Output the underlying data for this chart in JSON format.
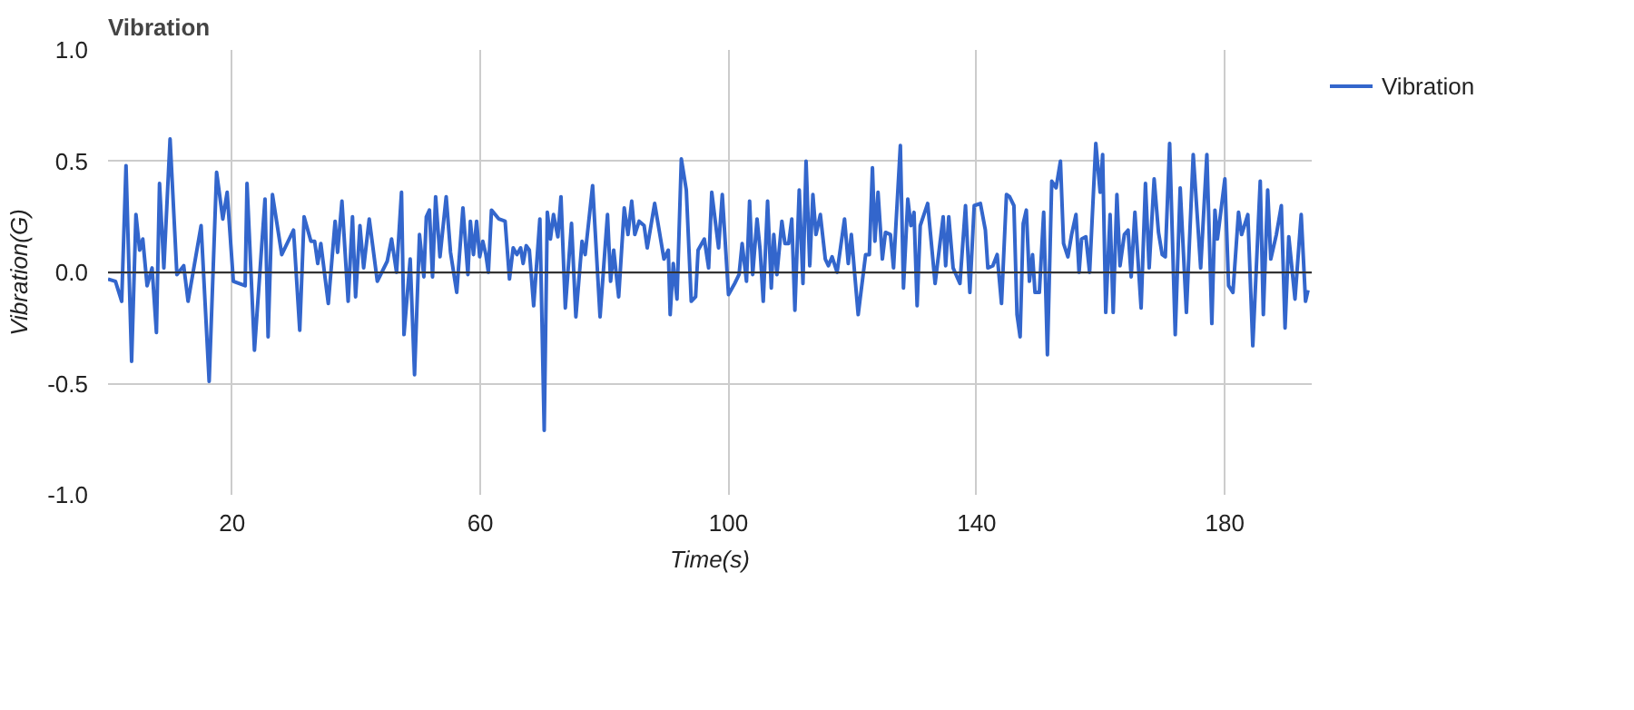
{
  "chart_data": {
    "type": "line",
    "title": "Vibration",
    "xlabel": "Time(s)",
    "ylabel": "Vibration(G)",
    "xlim": [
      0,
      194
    ],
    "xticks": [
      20,
      60,
      100,
      140,
      180
    ],
    "ylim": [
      -1.0,
      1.0
    ],
    "yticks": [
      {
        "value": -1.0,
        "label": "-1.0"
      },
      {
        "value": -0.5,
        "label": "-0.5"
      },
      {
        "value": 0,
        "label": "0.0"
      },
      {
        "value": 0.5,
        "label": "0.5"
      },
      {
        "value": 1.0,
        "label": "1.0"
      }
    ],
    "grid": true,
    "legend": "top right",
    "line_style": "solid",
    "ref_lines": [
      {
        "axis": "y",
        "value": 0,
        "color": "#333333"
      }
    ],
    "x": [
      0,
      1.2,
      2.2,
      2.9,
      3.8,
      4.5,
      5.1,
      5.6,
      6.3,
      7.1,
      7.8,
      8.3,
      9.0,
      10.0,
      11.1,
      12.2,
      12.9,
      15.0,
      16.3,
      17.5,
      18.5,
      19.2,
      20.2,
      22.1,
      22.4,
      23.6,
      25.3,
      25.8,
      26.5,
      28.0,
      29.9,
      30.9,
      31.6,
      32.7,
      33.3,
      33.8,
      34.3,
      35.5,
      36.6,
      37.0,
      37.7,
      38.7,
      39.4,
      39.9,
      40.6,
      41.2,
      42.1,
      43.4,
      45.0,
      45.7,
      46.5,
      47.3,
      47.7,
      48.7,
      49.4,
      50.2,
      50.9,
      51.3,
      51.8,
      52.3,
      52.8,
      53.5,
      54.5,
      55.2,
      56.2,
      57.2,
      58.0,
      58.4,
      58.9,
      59.4,
      59.9,
      60.4,
      60.9,
      61.3,
      61.8,
      63.0,
      64.0,
      64.7,
      65.3,
      65.9,
      66.5,
      66.9,
      67.4,
      67.9,
      68.6,
      69.6,
      70.3,
      70.8,
      71.3,
      71.8,
      72.5,
      73.0,
      73.7,
      74.7,
      75.4,
      76.4,
      76.9,
      78.1,
      79.3,
      80.5,
      81.0,
      81.5,
      82.3,
      83.2,
      83.8,
      84.4,
      84.9,
      85.6,
      86.4,
      86.9,
      88.1,
      89.6,
      90.3,
      90.6,
      91.1,
      91.7,
      92.4,
      93.2,
      94.0,
      94.7,
      95.1,
      96.1,
      96.8,
      97.3,
      98.4,
      99.0,
      100.0,
      101.0,
      101.7,
      102.2,
      102.9,
      103.4,
      103.9,
      104.6,
      105.1,
      105.6,
      106.3,
      106.9,
      107.3,
      107.8,
      108.6,
      109.1,
      109.7,
      110.2,
      110.7,
      111.4,
      112.0,
      112.5,
      113.1,
      113.6,
      114.1,
      114.8,
      115.6,
      116.1,
      116.7,
      117.5,
      118.7,
      119.3,
      119.8,
      120.9,
      122.1,
      122.7,
      123.2,
      123.6,
      124.1,
      124.8,
      125.3,
      126.1,
      126.6,
      127.7,
      128.2,
      128.9,
      129.4,
      129.9,
      130.4,
      130.9,
      132.1,
      133.3,
      134.6,
      135.0,
      135.5,
      136.2,
      137.3,
      138.2,
      138.9,
      139.6,
      140.6,
      141.4,
      141.8,
      142.6,
      143.3,
      144.0,
      144.8,
      145.3,
      146.0,
      146.5,
      147.0,
      147.5,
      148.0,
      148.5,
      149.0,
      149.4,
      150.1,
      150.8,
      151.4,
      152.1,
      152.8,
      153.5,
      154.0,
      154.7,
      155.3,
      156.0,
      156.5,
      156.9,
      157.6,
      158.2,
      159.2,
      159.9,
      160.3,
      160.8,
      161.5,
      162.0,
      162.6,
      163.1,
      163.8,
      164.4,
      164.9,
      165.5,
      166.5,
      167.2,
      167.8,
      168.6,
      169.3,
      169.9,
      170.4,
      171.1,
      172.0,
      172.8,
      173.8,
      174.9,
      176.1,
      177.1,
      177.9,
      178.4,
      178.8,
      180.0,
      180.6,
      181.3,
      182.2,
      182.7,
      183.7,
      184.5,
      185.7,
      186.2,
      186.9,
      187.4,
      188.3,
      189.1,
      189.7,
      190.3,
      191.3,
      192.3,
      193.0,
      193.4
    ],
    "series": [
      {
        "name": "Vibration",
        "color": "#3366cc",
        "values": [
          -0.03,
          -0.04,
          -0.13,
          0.48,
          -0.4,
          0.26,
          0.1,
          0.15,
          -0.06,
          0.02,
          -0.27,
          0.4,
          0.02,
          0.6,
          -0.01,
          0.03,
          -0.13,
          0.21,
          -0.49,
          0.45,
          0.24,
          0.36,
          -0.04,
          -0.06,
          0.4,
          -0.35,
          0.33,
          -0.29,
          0.35,
          0.08,
          0.19,
          -0.26,
          0.25,
          0.14,
          0.14,
          0.04,
          0.13,
          -0.14,
          0.23,
          0.09,
          0.32,
          -0.13,
          0.25,
          -0.11,
          0.21,
          0.02,
          0.24,
          -0.04,
          0.05,
          0.15,
          0.0,
          0.36,
          -0.28,
          0.06,
          -0.46,
          0.17,
          -0.02,
          0.25,
          0.28,
          -0.02,
          0.34,
          0.07,
          0.34,
          0.09,
          -0.09,
          0.29,
          -0.01,
          0.23,
          0.08,
          0.23,
          0.07,
          0.14,
          0.08,
          0.0,
          0.28,
          0.24,
          0.23,
          -0.03,
          0.11,
          0.08,
          0.11,
          0.04,
          0.12,
          0.1,
          -0.15,
          0.24,
          -0.71,
          0.27,
          0.15,
          0.26,
          0.16,
          0.34,
          -0.16,
          0.22,
          -0.2,
          0.14,
          0.08,
          0.39,
          -0.2,
          0.26,
          -0.04,
          0.1,
          -0.11,
          0.29,
          0.17,
          0.32,
          0.17,
          0.23,
          0.21,
          0.11,
          0.31,
          0.06,
          0.1,
          -0.19,
          0.04,
          -0.12,
          0.51,
          0.37,
          -0.13,
          -0.11,
          0.1,
          0.15,
          0.02,
          0.36,
          0.11,
          0.35,
          -0.1,
          -0.05,
          -0.01,
          0.13,
          -0.04,
          0.32,
          -0.01,
          0.24,
          0.1,
          -0.13,
          0.32,
          -0.07,
          0.17,
          -0.01,
          0.23,
          0.13,
          0.13,
          0.24,
          -0.17,
          0.37,
          -0.05,
          0.5,
          0.03,
          0.35,
          0.17,
          0.26,
          0.06,
          0.03,
          0.07,
          0.0,
          0.24,
          0.04,
          0.17,
          -0.19,
          0.08,
          0.08,
          0.47,
          0.14,
          0.36,
          0.06,
          0.18,
          0.17,
          0.02,
          0.57,
          -0.07,
          0.33,
          0.21,
          0.27,
          -0.15,
          0.21,
          0.31,
          -0.05,
          0.25,
          0.03,
          0.25,
          0.02,
          -0.05,
          0.3,
          -0.09,
          0.3,
          0.31,
          0.19,
          0.02,
          0.03,
          0.08,
          -0.14,
          0.35,
          0.34,
          0.3,
          -0.19,
          -0.29,
          0.22,
          0.28,
          -0.04,
          0.08,
          -0.09,
          -0.09,
          0.27,
          -0.37,
          0.41,
          0.38,
          0.5,
          0.13,
          0.07,
          0.17,
          0.26,
          0.0,
          0.15,
          0.16,
          0.0,
          0.58,
          0.36,
          0.53,
          -0.18,
          0.26,
          -0.18,
          0.35,
          0.03,
          0.17,
          0.19,
          -0.02,
          0.27,
          -0.16,
          0.4,
          0.02,
          0.42,
          0.18,
          0.08,
          0.07,
          0.58,
          -0.28,
          0.38,
          -0.18,
          0.53,
          0.02,
          0.53,
          -0.23,
          0.28,
          0.15,
          0.42,
          -0.06,
          -0.09,
          0.27,
          0.17,
          0.26,
          -0.33,
          0.41,
          -0.19,
          0.37,
          0.06,
          0.17,
          0.3,
          -0.25,
          0.16,
          -0.12,
          0.26,
          -0.13,
          -0.08
        ]
      }
    ]
  }
}
